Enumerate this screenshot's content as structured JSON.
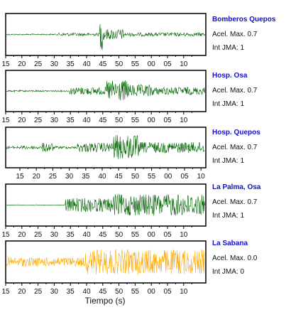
{
  "chart_data": {
    "type": "line",
    "xlabel": "Tiempo (s)",
    "x_tick_labels": [
      "15",
      "20",
      "25",
      "30",
      "35",
      "40",
      "45",
      "50",
      "55",
      "00",
      "05",
      "10"
    ],
    "x_tick_labels_panel3": [
      "15",
      "20",
      "25",
      "30",
      "35",
      "40",
      "45",
      "50",
      "55",
      "00",
      "05",
      "10"
    ],
    "panels": [
      {
        "station": "Bomberos Quepos",
        "acel_label": "Acel. Max. 0.7",
        "jma_label": "Int JMA: 1",
        "color": "#006400"
      },
      {
        "station": "Hosp. Osa",
        "acel_label": "Acel. Max. 0.7",
        "jma_label": "Int JMA: 1",
        "color": "#006400"
      },
      {
        "station": "Hosp. Quepos",
        "acel_label": "Acel. Max. 0.7",
        "jma_label": "Int JMA: 1",
        "color": "#006400"
      },
      {
        "station": "La Palma, Osa",
        "acel_label": "Acel. Max. 0.7",
        "jma_label": "Int JMA: 1",
        "color": "#006400"
      },
      {
        "station": "La Sabana",
        "acel_label": "Acel. Max. 0.0",
        "jma_label": "Int JMA: 0",
        "color": "#ffaa00"
      }
    ]
  }
}
